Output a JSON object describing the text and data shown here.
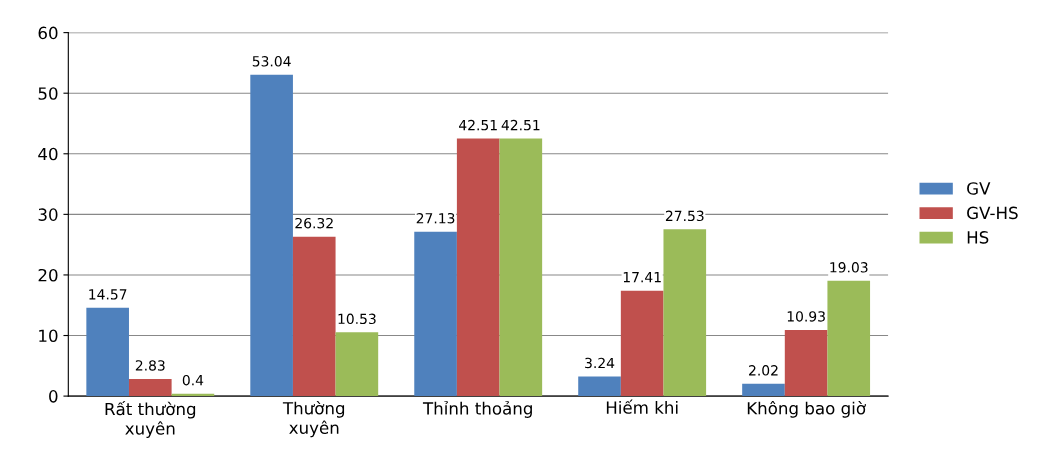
{
  "chart_data": {
    "type": "bar",
    "categories": [
      "Rất thường\nxuyên",
      "Thường\nxuyên",
      "Thỉnh thoảng",
      "Hiếm khi",
      "Không bao giờ"
    ],
    "series": [
      {
        "name": "GV",
        "color": "#4f81bd",
        "values": [
          14.57,
          53.04,
          27.13,
          3.24,
          2.02
        ]
      },
      {
        "name": "GV-HS",
        "color": "#c0504d",
        "values": [
          2.83,
          26.32,
          42.51,
          17.41,
          10.93
        ]
      },
      {
        "name": "HS",
        "color": "#9bbb59",
        "values": [
          0.4,
          10.53,
          42.51,
          27.53,
          19.03
        ]
      }
    ],
    "ylim": [
      0,
      60
    ],
    "yticks": [
      0,
      10,
      20,
      30,
      40,
      50,
      60
    ],
    "grid": "y",
    "legend": "right",
    "data_labels": true
  }
}
